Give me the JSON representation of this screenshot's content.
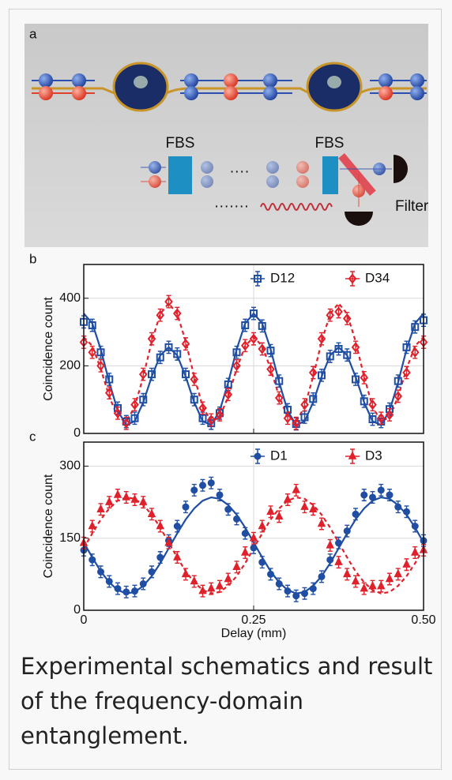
{
  "schematic": {
    "panel": "a",
    "labels": [
      "FBS",
      "FBS",
      "Filter"
    ],
    "dots": [
      "····",
      "·······"
    ]
  },
  "caption": "Experimental schematics and result of the frequency-domain entanglement.",
  "chart_data": [
    {
      "type": "errorbar",
      "panel": "b",
      "ylabel": "Coincidence count",
      "x": [
        0,
        0.0125,
        0.025,
        0.0375,
        0.05,
        0.0625,
        0.075,
        0.0875,
        0.1,
        0.1125,
        0.125,
        0.1375,
        0.15,
        0.1625,
        0.175,
        0.1875,
        0.2,
        0.2125,
        0.225,
        0.2375,
        0.25,
        0.2625,
        0.275,
        0.2875,
        0.3,
        0.3125,
        0.325,
        0.3375,
        0.35,
        0.3625,
        0.375,
        0.3875,
        0.4,
        0.4125,
        0.425,
        0.4375,
        0.45,
        0.4625,
        0.475,
        0.4875,
        0.5
      ],
      "xlim": [
        0,
        0.5
      ],
      "xticks": [
        0,
        0.25,
        {
          "value": 0.5,
          "label": "0.50"
        }
      ],
      "xtick_labels": false,
      "ylim": [
        0,
        500
      ],
      "yticks": [
        0,
        200,
        400
      ],
      "grid": true,
      "legend": "top-right",
      "series": [
        {
          "name": "D12",
          "kind": "points",
          "marker": "square",
          "color": "#1f4ea3",
          "error": 18,
          "values": [
            330,
            320,
            240,
            160,
            75,
            35,
            45,
            100,
            175,
            225,
            255,
            235,
            175,
            100,
            45,
            30,
            60,
            145,
            240,
            320,
            355,
            318,
            245,
            155,
            70,
            28,
            48,
            102,
            172,
            228,
            250,
            232,
            160,
            95,
            42,
            35,
            72,
            155,
            255,
            315,
            335
          ]
        },
        {
          "name": "D34",
          "kind": "points",
          "marker": "diamond",
          "color": "#e0202a",
          "error": 18,
          "values": [
            270,
            240,
            200,
            120,
            60,
            30,
            85,
            175,
            280,
            350,
            390,
            355,
            265,
            160,
            75,
            40,
            55,
            115,
            200,
            260,
            280,
            250,
            190,
            105,
            45,
            30,
            85,
            180,
            280,
            350,
            360,
            340,
            255,
            165,
            85,
            45,
            55,
            110,
            180,
            240,
            270
          ]
        },
        {
          "kind": "line",
          "style": "solid",
          "color": "#1f4ea3",
          "values": [
            355,
            326,
            249,
            151,
            67,
            25,
            36,
            92,
            168,
            231,
            255,
            231,
            168,
            92,
            36,
            25,
            67,
            151,
            249,
            326,
            355,
            326,
            249,
            151,
            67,
            25,
            36,
            92,
            168,
            231,
            255,
            231,
            168,
            92,
            36,
            25,
            67,
            151,
            249,
            326,
            355
          ]
        },
        {
          "kind": "line",
          "style": "dashed",
          "color": "#e0202a",
          "values": [
            285,
            259,
            191,
            109,
            48,
            35,
            79,
            168,
            272,
            354,
            385,
            354,
            272,
            168,
            79,
            35,
            48,
            109,
            191,
            259,
            285,
            259,
            191,
            109,
            48,
            35,
            79,
            168,
            272,
            354,
            385,
            354,
            272,
            168,
            79,
            35,
            48,
            109,
            191,
            259,
            285
          ]
        }
      ]
    },
    {
      "type": "errorbar",
      "panel": "c",
      "ylabel": "Coincidence count",
      "xlabel": "Delay (mm)",
      "x": [
        0,
        0.0125,
        0.025,
        0.0375,
        0.05,
        0.0625,
        0.075,
        0.0875,
        0.1,
        0.1125,
        0.125,
        0.1375,
        0.15,
        0.1625,
        0.175,
        0.1875,
        0.2,
        0.2125,
        0.225,
        0.2375,
        0.25,
        0.2625,
        0.275,
        0.2875,
        0.3,
        0.3125,
        0.325,
        0.3375,
        0.35,
        0.3625,
        0.375,
        0.3875,
        0.4,
        0.4125,
        0.425,
        0.4375,
        0.45,
        0.4625,
        0.475,
        0.4875,
        0.5
      ],
      "xlim": [
        0,
        0.5
      ],
      "xticks": [
        0,
        0.25,
        {
          "value": 0.5,
          "label": "0.50"
        }
      ],
      "xtick_labels": true,
      "ylim": [
        0,
        350
      ],
      "yticks": [
        0,
        150,
        300
      ],
      "grid": true,
      "legend": "top-right",
      "series": [
        {
          "name": "D1",
          "kind": "points",
          "marker": "circle",
          "color": "#1f4ea3",
          "error": 12,
          "values": [
            125,
            105,
            80,
            60,
            45,
            38,
            40,
            55,
            80,
            110,
            145,
            175,
            215,
            250,
            260,
            265,
            240,
            210,
            190,
            160,
            130,
            100,
            75,
            55,
            40,
            30,
            35,
            45,
            70,
            105,
            140,
            165,
            200,
            240,
            235,
            250,
            240,
            215,
            205,
            175,
            145
          ]
        },
        {
          "name": "D3",
          "kind": "points",
          "marker": "triangle",
          "color": "#e0202a",
          "error": 12,
          "values": [
            140,
            175,
            210,
            225,
            240,
            235,
            230,
            225,
            200,
            175,
            140,
            110,
            75,
            60,
            40,
            45,
            50,
            65,
            90,
            120,
            150,
            175,
            205,
            195,
            230,
            250,
            215,
            210,
            180,
            135,
            100,
            75,
            60,
            45,
            50,
            50,
            65,
            75,
            95,
            120,
            125
          ]
        },
        {
          "kind": "line",
          "style": "solid",
          "color": "#1f4ea3",
          "values": [
            141,
            110,
            81,
            58,
            42,
            35,
            38,
            51,
            71,
            98,
            129,
            160,
            189,
            212,
            228,
            235,
            232,
            219,
            199,
            172,
            141,
            110,
            81,
            58,
            42,
            35,
            38,
            51,
            71,
            98,
            129,
            160,
            189,
            212,
            228,
            235,
            232,
            219,
            199,
            172,
            141
          ]
        },
        {
          "kind": "line",
          "style": "dashed",
          "color": "#e0202a",
          "values": [
            129,
            160,
            189,
            212,
            228,
            235,
            232,
            219,
            199,
            172,
            141,
            110,
            81,
            58,
            42,
            35,
            38,
            51,
            71,
            98,
            129,
            160,
            189,
            212,
            228,
            235,
            232,
            219,
            199,
            172,
            141,
            110,
            81,
            58,
            42,
            35,
            38,
            51,
            71,
            98,
            129
          ]
        }
      ]
    }
  ]
}
